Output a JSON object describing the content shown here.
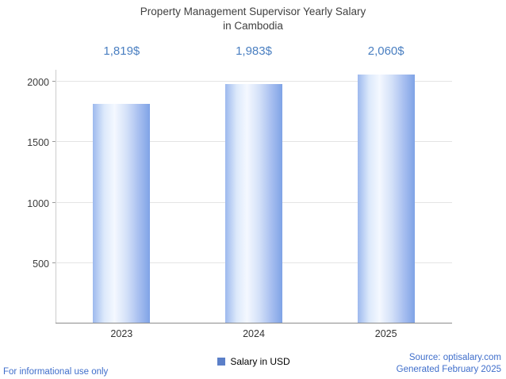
{
  "title_line1": "Property Management Supervisor Yearly Salary",
  "title_line2": "in Cambodia",
  "legend": {
    "label": "Salary in USD",
    "marker_color": "#5b7fc8"
  },
  "footer": {
    "disclaimer": "For informational use only",
    "source": "Source: optisalary.com",
    "generated": "Generated February 2025"
  },
  "colors": {
    "value_label_text": "#4a7fc1",
    "link_text": "#3f6ecb",
    "bar_edge": "#7fa3e6",
    "bar_center": "#f4f8ff"
  },
  "chart_data": {
    "type": "bar",
    "title": "Property Management Supervisor Yearly Salary in Cambodia",
    "categories": [
      "2023",
      "2024",
      "2025"
    ],
    "values": [
      1819,
      1983,
      2060
    ],
    "value_labels": [
      "1,819$",
      "1,983$",
      "2,060$"
    ],
    "series_name": "Salary in USD",
    "xlabel": "",
    "ylabel": "",
    "ylim": [
      0,
      2100
    ],
    "y_ticks": [
      500,
      1000,
      1500,
      2000
    ],
    "grid": true,
    "legend_position": "bottom"
  }
}
